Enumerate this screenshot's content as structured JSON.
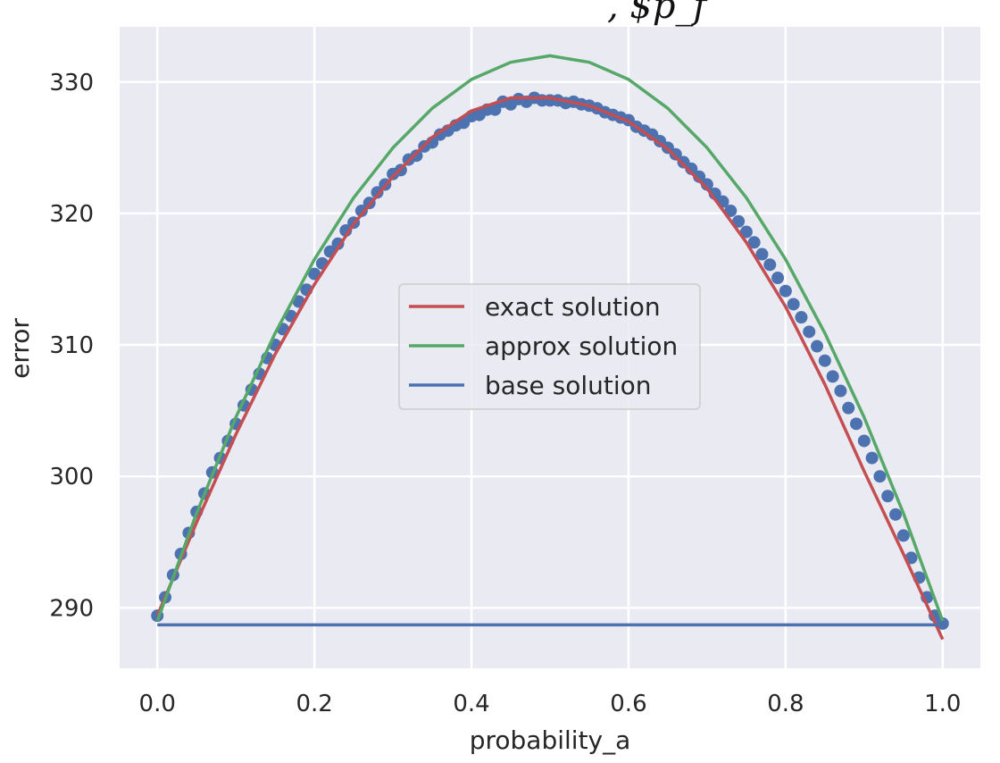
{
  "chart_data": {
    "type": "line",
    "title": "",
    "title_fragment": ", $p_f",
    "xlabel": "probability_a",
    "ylabel": "error",
    "xlim": [
      -0.048,
      1.048
    ],
    "ylim": [
      285.4,
      334.2
    ],
    "xticks": [
      0.0,
      0.2,
      0.4,
      0.6,
      0.8,
      1.0
    ],
    "xtick_labels": [
      "0.0",
      "0.2",
      "0.4",
      "0.6",
      "0.8",
      "1.0"
    ],
    "yticks": [
      290,
      300,
      310,
      320,
      330
    ],
    "ytick_labels": [
      "290",
      "300",
      "310",
      "320",
      "330"
    ],
    "grid": true,
    "background": "#eaeaf2",
    "legend_position": "center",
    "series": [
      {
        "name": "exact solution",
        "kind": "line",
        "color": "#c44e52",
        "x": [
          0.0,
          0.05,
          0.1,
          0.15,
          0.2,
          0.25,
          0.3,
          0.35,
          0.4,
          0.45,
          0.5,
          0.55,
          0.6,
          0.65,
          0.7,
          0.75,
          0.8,
          0.85,
          0.9,
          0.95,
          1.0
        ],
        "y": [
          289.4,
          296.5,
          303.2,
          309.3,
          314.6,
          319.2,
          322.8,
          325.8,
          327.8,
          328.8,
          328.8,
          328.2,
          327.0,
          324.9,
          321.9,
          317.8,
          312.9,
          307.0,
          300.4,
          294.1,
          287.6
        ]
      },
      {
        "name": "approx solution",
        "kind": "line",
        "color": "#55a868",
        "x": [
          0.0,
          0.05,
          0.1,
          0.15,
          0.2,
          0.25,
          0.3,
          0.35,
          0.4,
          0.45,
          0.5,
          0.55,
          0.6,
          0.65,
          0.7,
          0.75,
          0.8,
          0.85,
          0.9,
          0.95,
          1.0
        ],
        "y": [
          289.0,
          297.2,
          304.5,
          310.9,
          316.5,
          321.2,
          325.0,
          328.0,
          330.2,
          331.5,
          332.0,
          331.5,
          330.2,
          328.0,
          325.0,
          321.2,
          316.5,
          310.9,
          304.5,
          297.2,
          289.0
        ]
      },
      {
        "name": "base solution",
        "kind": "line",
        "color": "#4c72b0",
        "x": [
          0.0,
          1.0
        ],
        "y": [
          288.7,
          288.7
        ]
      },
      {
        "name": "",
        "kind": "scatter",
        "color": "#4c72b0",
        "x": [
          0.0,
          0.01,
          0.02,
          0.03,
          0.04,
          0.05,
          0.06,
          0.07,
          0.08,
          0.09,
          0.1,
          0.11,
          0.12,
          0.13,
          0.14,
          0.15,
          0.16,
          0.17,
          0.18,
          0.19,
          0.2,
          0.21,
          0.22,
          0.23,
          0.24,
          0.25,
          0.26,
          0.27,
          0.28,
          0.29,
          0.3,
          0.31,
          0.32,
          0.33,
          0.34,
          0.35,
          0.36,
          0.37,
          0.38,
          0.39,
          0.4,
          0.41,
          0.42,
          0.43,
          0.44,
          0.45,
          0.46,
          0.47,
          0.48,
          0.49,
          0.5,
          0.51,
          0.52,
          0.53,
          0.54,
          0.55,
          0.56,
          0.57,
          0.58,
          0.59,
          0.6,
          0.61,
          0.62,
          0.63,
          0.64,
          0.65,
          0.66,
          0.67,
          0.68,
          0.69,
          0.7,
          0.71,
          0.72,
          0.73,
          0.74,
          0.75,
          0.76,
          0.77,
          0.78,
          0.79,
          0.8,
          0.81,
          0.82,
          0.83,
          0.84,
          0.85,
          0.86,
          0.87,
          0.88,
          0.89,
          0.9,
          0.91,
          0.92,
          0.93,
          0.94,
          0.95,
          0.96,
          0.97,
          0.98,
          0.99,
          1.0
        ],
        "y": [
          289.4,
          290.8,
          292.5,
          294.1,
          295.7,
          297.3,
          298.7,
          300.3,
          301.4,
          302.7,
          304.0,
          305.4,
          306.6,
          307.8,
          309.0,
          310.0,
          311.2,
          312.2,
          313.3,
          314.2,
          315.4,
          316.2,
          317.1,
          317.7,
          318.7,
          319.3,
          320.2,
          320.8,
          321.6,
          322.2,
          323.0,
          323.3,
          324.1,
          324.4,
          325.1,
          325.4,
          326.0,
          326.3,
          326.7,
          326.9,
          327.4,
          327.5,
          327.9,
          327.9,
          328.5,
          328.3,
          328.7,
          328.5,
          328.8,
          328.6,
          328.6,
          328.6,
          328.4,
          328.5,
          328.3,
          328.2,
          328.0,
          327.7,
          327.5,
          327.3,
          327.1,
          326.6,
          326.3,
          326.0,
          325.5,
          325.0,
          324.5,
          323.9,
          323.4,
          322.8,
          322.2,
          321.5,
          320.9,
          320.2,
          319.4,
          318.6,
          317.8,
          316.9,
          316.1,
          315.1,
          314.1,
          313.1,
          312.1,
          311.0,
          309.9,
          308.8,
          307.6,
          306.5,
          305.2,
          304.0,
          302.7,
          301.4,
          300.0,
          298.5,
          297.1,
          295.5,
          293.8,
          292.3,
          290.8,
          289.4,
          288.8
        ]
      }
    ],
    "legend": [
      "exact solution",
      "approx solution",
      "base solution"
    ]
  }
}
